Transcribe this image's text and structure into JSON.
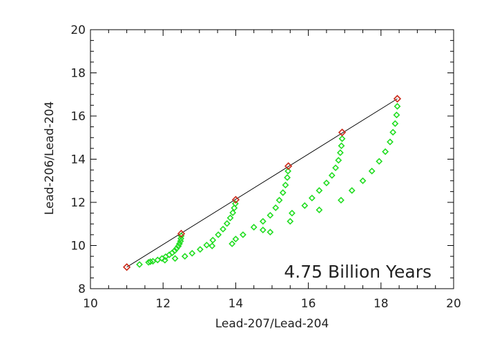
{
  "chart_data": {
    "type": "scatter",
    "title": "",
    "xlabel": "Lead-207/Lead-204",
    "ylabel": "Lead-206/Lead-204",
    "xlim": [
      10,
      20
    ],
    "ylim": [
      8,
      20
    ],
    "x_ticks": [
      "10",
      "12",
      "14",
      "16",
      "18",
      "20"
    ],
    "y_ticks": [
      "8",
      "10",
      "12",
      "14",
      "16",
      "18",
      "20"
    ],
    "annotation": "4.75 Billion Years",
    "grid": false,
    "legend": "none",
    "isochron_line": {
      "x": [
        11.0,
        18.45
      ],
      "y": [
        9.0,
        16.8
      ],
      "color": "#000000"
    },
    "series": [
      {
        "marker": "diamond",
        "color": "#cc2a1a",
        "points": [
          [
            11.0,
            9.0
          ],
          [
            12.5,
            10.55
          ],
          [
            14.0,
            12.12
          ],
          [
            15.45,
            13.68
          ],
          [
            16.93,
            15.24
          ],
          [
            18.45,
            16.8
          ]
        ]
      },
      {
        "marker": "diamond",
        "color": "#22dd22",
        "points": [
          [
            11.35,
            9.12
          ],
          [
            11.6,
            9.22
          ],
          [
            11.72,
            9.27
          ],
          [
            11.85,
            9.33
          ],
          [
            11.97,
            9.4
          ],
          [
            12.07,
            9.48
          ],
          [
            12.17,
            9.57
          ],
          [
            12.25,
            9.66
          ],
          [
            12.32,
            9.76
          ],
          [
            12.37,
            9.86
          ],
          [
            12.42,
            9.97
          ],
          [
            12.45,
            10.08
          ],
          [
            12.48,
            10.2
          ],
          [
            12.49,
            10.32
          ],
          [
            12.5,
            10.45
          ],
          [
            11.65,
            9.25
          ],
          [
            12.05,
            9.32
          ],
          [
            12.33,
            9.4
          ],
          [
            12.6,
            9.5
          ],
          [
            12.8,
            9.64
          ],
          [
            13.02,
            9.82
          ],
          [
            13.2,
            10.02
          ],
          [
            13.37,
            10.25
          ],
          [
            13.52,
            10.5
          ],
          [
            13.65,
            10.76
          ],
          [
            13.76,
            11.02
          ],
          [
            13.85,
            11.28
          ],
          [
            13.92,
            11.52
          ],
          [
            13.96,
            11.74
          ],
          [
            13.99,
            11.94
          ],
          [
            13.35,
            9.98
          ],
          [
            13.9,
            10.08
          ],
          [
            14.0,
            10.3
          ],
          [
            14.2,
            10.5
          ],
          [
            14.5,
            10.85
          ],
          [
            14.75,
            11.12
          ],
          [
            14.95,
            11.4
          ],
          [
            15.1,
            11.75
          ],
          [
            15.2,
            12.1
          ],
          [
            15.3,
            12.45
          ],
          [
            15.37,
            12.8
          ],
          [
            15.42,
            13.15
          ],
          [
            15.44,
            13.45
          ],
          [
            14.75,
            10.72
          ],
          [
            14.95,
            10.62
          ],
          [
            15.5,
            11.12
          ],
          [
            15.55,
            11.5
          ],
          [
            15.9,
            11.85
          ],
          [
            16.1,
            12.2
          ],
          [
            16.3,
            12.55
          ],
          [
            16.5,
            12.9
          ],
          [
            16.65,
            13.25
          ],
          [
            16.75,
            13.6
          ],
          [
            16.83,
            13.95
          ],
          [
            16.88,
            14.3
          ],
          [
            16.91,
            14.62
          ],
          [
            16.93,
            14.95
          ],
          [
            16.3,
            11.65
          ],
          [
            16.9,
            12.1
          ],
          [
            17.2,
            12.55
          ],
          [
            17.5,
            13.0
          ],
          [
            17.75,
            13.45
          ],
          [
            17.95,
            13.9
          ],
          [
            18.12,
            14.35
          ],
          [
            18.25,
            14.8
          ],
          [
            18.33,
            15.25
          ],
          [
            18.39,
            15.65
          ],
          [
            18.43,
            16.05
          ],
          [
            18.45,
            16.45
          ]
        ]
      }
    ]
  }
}
